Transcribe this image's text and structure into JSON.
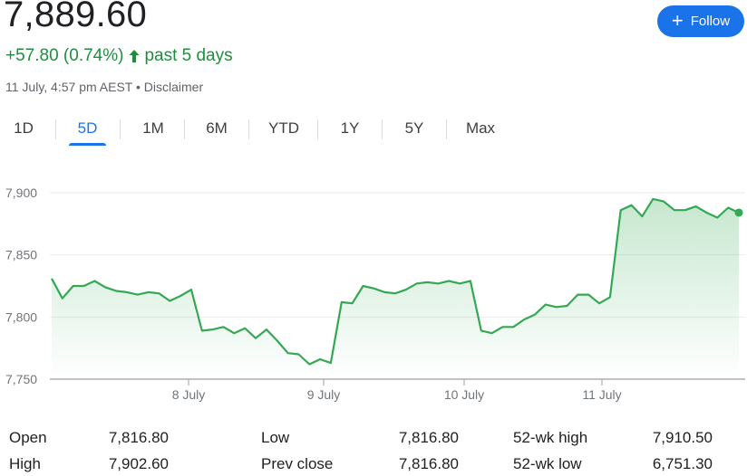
{
  "header": {
    "price": "7,889.60",
    "change": "+57.80 (0.74%)",
    "period": "past 5 days",
    "timestamp": "11 July, 4:57 pm AEST",
    "separator": "•",
    "disclaimer": "Disclaimer",
    "follow_label": "Follow",
    "colors": {
      "positive": "#1e8e3e",
      "accent": "#1a73e8"
    }
  },
  "tabs": [
    {
      "label": "1D",
      "active": false
    },
    {
      "label": "5D",
      "active": true
    },
    {
      "label": "1M",
      "active": false
    },
    {
      "label": "6M",
      "active": false
    },
    {
      "label": "YTD",
      "active": false
    },
    {
      "label": "1Y",
      "active": false
    },
    {
      "label": "5Y",
      "active": false
    },
    {
      "label": "Max",
      "active": false
    }
  ],
  "chart_data": {
    "type": "area",
    "y_ticks": [
      "7,900",
      "7,850",
      "7,800",
      "7,750"
    ],
    "y_tick_values": [
      7900,
      7850,
      7800,
      7750
    ],
    "ylim": [
      7750,
      7900
    ],
    "x_tick_labels": [
      "8 July",
      "9 July",
      "10 July",
      "11 July"
    ],
    "x_tick_index": [
      10,
      20,
      30,
      40
    ],
    "line_color": "#34a853",
    "fill_color": "#34a853",
    "values": [
      7831,
      7815,
      7825,
      7825,
      7829,
      7824,
      7821,
      7820,
      7818,
      7820,
      7819,
      7813,
      7817,
      7822,
      7789,
      7790,
      7792,
      7787,
      7791,
      7783,
      7790,
      7781,
      7771,
      7770,
      7762,
      7766,
      7763,
      7812,
      7811,
      7825,
      7823,
      7820,
      7819,
      7822,
      7827,
      7828,
      7827,
      7829,
      7827,
      7829,
      7789,
      7787,
      7792,
      7792,
      7798,
      7802,
      7810,
      7808,
      7809,
      7818,
      7818,
      7811,
      7816,
      7886,
      7890,
      7881,
      7895,
      7893,
      7886,
      7886,
      7889,
      7884,
      7880,
      7888,
      7884
    ],
    "x_tick_positions": [
      13.5,
      23.5,
      33.5,
      43.5
    ],
    "last_point_marker": true
  },
  "stats": [
    {
      "label": "Open",
      "value": "7,816.80"
    },
    {
      "label": "High",
      "value": "7,902.60"
    },
    {
      "label": "Low",
      "value": "7,816.80"
    },
    {
      "label": "Prev close",
      "value": "7,816.80"
    },
    {
      "label": "52-wk high",
      "value": "7,910.50"
    },
    {
      "label": "52-wk low",
      "value": "6,751.30"
    }
  ]
}
